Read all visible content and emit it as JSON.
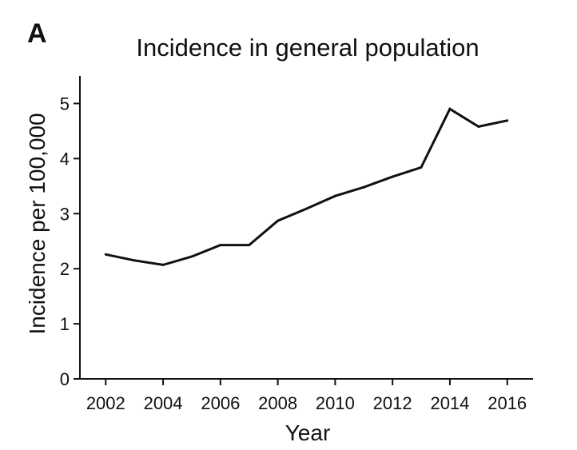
{
  "panel_label": "A",
  "chart_data": {
    "type": "line",
    "title": "Incidence in general population",
    "xlabel": "Year",
    "ylabel": "Incidence  per 100,000",
    "xlim": [
      2001.1,
      2016.9
    ],
    "ylim": [
      0,
      5.5
    ],
    "x_ticks": [
      2002,
      2004,
      2006,
      2008,
      2010,
      2012,
      2014,
      2016
    ],
    "x_tick_labels": [
      "2002",
      "2004",
      "2006",
      "2008",
      "2010",
      "2012",
      "2014",
      "2016"
    ],
    "y_ticks": [
      0,
      1,
      2,
      3,
      4,
      5
    ],
    "y_tick_labels": [
      "0",
      "1",
      "2",
      "3",
      "4",
      "5"
    ],
    "grid": false,
    "legend": "none",
    "series": [
      {
        "name": "General population",
        "color": "#111111",
        "x": [
          2002,
          2003,
          2004,
          2005,
          2006,
          2007,
          2008,
          2009,
          2010,
          2011,
          2012,
          2013,
          2014,
          2015,
          2016
        ],
        "values": [
          2.26,
          2.15,
          2.07,
          2.22,
          2.43,
          2.43,
          2.87,
          3.09,
          3.32,
          3.48,
          3.67,
          3.84,
          4.9,
          4.58,
          4.69
        ]
      }
    ]
  }
}
